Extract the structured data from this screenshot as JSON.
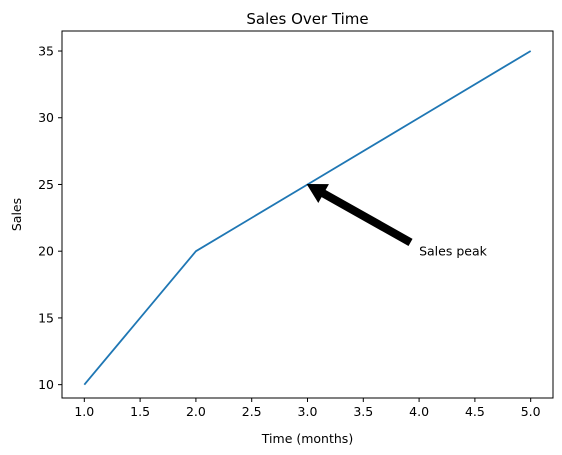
{
  "chart_data": {
    "type": "line",
    "title": "Sales Over Time",
    "xlabel": "Time (months)",
    "ylabel": "Sales",
    "xlim": [
      0.8,
      5.2
    ],
    "ylim": [
      9.0,
      36.5
    ],
    "x_ticks": [
      1.0,
      1.5,
      2.0,
      2.5,
      3.0,
      3.5,
      4.0,
      4.5,
      5.0
    ],
    "x_tick_labels": [
      "1.0",
      "1.5",
      "2.0",
      "2.5",
      "3.0",
      "3.5",
      "4.0",
      "4.5",
      "5.0"
    ],
    "y_ticks": [
      10,
      15,
      20,
      25,
      30,
      35
    ],
    "y_tick_labels": [
      "10",
      "15",
      "20",
      "25",
      "30",
      "35"
    ],
    "grid": false,
    "series": [
      {
        "x": [
          1,
          2,
          3,
          4,
          5
        ],
        "y": [
          10,
          20,
          25,
          30,
          35
        ],
        "color": "#1f77b4"
      }
    ],
    "annotations": [
      {
        "text": "Sales peak",
        "xy": [
          3,
          25
        ],
        "xytext": [
          4,
          20
        ],
        "arrow_color": "#000000"
      }
    ]
  }
}
